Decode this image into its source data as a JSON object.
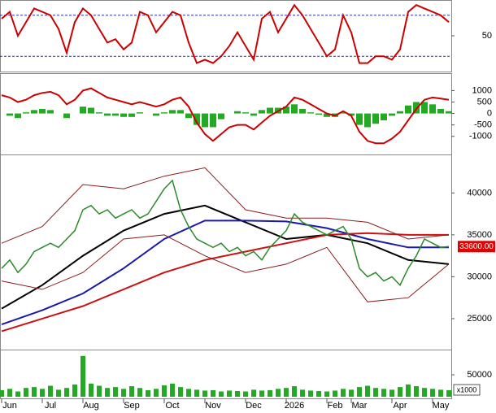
{
  "chart_data": [
    {
      "type": "oscillator",
      "ylim": [
        0,
        100
      ],
      "yticks": [
        50
      ],
      "reference_lines": [
        20,
        80
      ],
      "series": [
        {
          "color": "#cc0000",
          "values": [
            75,
            85,
            50,
            70,
            90,
            85,
            80,
            60,
            25,
            70,
            90,
            80,
            60,
            40,
            45,
            30,
            40,
            85,
            80,
            55,
            70,
            85,
            80,
            40,
            10,
            15,
            10,
            20,
            35,
            55,
            35,
            15,
            75,
            85,
            55,
            75,
            95,
            80,
            60,
            40,
            20,
            30,
            80,
            55,
            10,
            10,
            20,
            20,
            15,
            30,
            85,
            95,
            90,
            85,
            80,
            70
          ]
        }
      ]
    },
    {
      "type": "macd",
      "ylim": [
        -1650,
        1620
      ],
      "yticks": [
        1000,
        500,
        0,
        -500,
        -1000
      ],
      "series": [
        {
          "color": "#cc0000",
          "values": [
            800,
            700,
            500,
            600,
            800,
            900,
            950,
            800,
            400,
            600,
            1000,
            1100,
            900,
            700,
            600,
            500,
            400,
            500,
            400,
            300,
            400,
            600,
            700,
            300,
            -400,
            -900,
            -1200,
            -900,
            -600,
            -500,
            -500,
            -700,
            -400,
            -100,
            100,
            300,
            700,
            600,
            400,
            200,
            0,
            -100,
            100,
            -100,
            -800,
            -1200,
            -1300,
            -1300,
            -1100,
            -800,
            -300,
            200,
            600,
            700,
            650,
            600
          ]
        }
      ],
      "histogram": {
        "color": "#22aa22",
        "values": [
          0,
          -100,
          -200,
          50,
          150,
          200,
          150,
          0,
          -200,
          0,
          300,
          250,
          50,
          -100,
          -100,
          -150,
          -150,
          50,
          0,
          -100,
          50,
          150,
          150,
          -200,
          -500,
          -600,
          -600,
          -250,
          0,
          100,
          50,
          -100,
          150,
          250,
          250,
          300,
          400,
          200,
          50,
          -50,
          -150,
          -150,
          50,
          -100,
          -500,
          -600,
          -450,
          -300,
          -100,
          100,
          350,
          500,
          500,
          400,
          200,
          100
        ]
      }
    },
    {
      "type": "price",
      "ylim": [
        21500,
        44400
      ],
      "yticks": [
        40000,
        35000,
        30000,
        25000
      ],
      "series": [
        {
          "color": "#2a8a2a",
          "values": [
            31000,
            32000,
            30500,
            31500,
            33000,
            33500,
            34000,
            33500,
            34500,
            35500,
            38000,
            38500,
            37500,
            38000,
            37000,
            37500,
            38000,
            37000,
            37500,
            39000,
            40500,
            41500,
            38000,
            36000,
            34500,
            34000,
            33500,
            34000,
            33000,
            33500,
            32500,
            33000,
            32000,
            33500,
            34500,
            35500,
            37500,
            36500,
            36000,
            35500,
            35000,
            35500,
            36000,
            34500,
            31000,
            30000,
            30500,
            29500,
            30000,
            29000,
            31000,
            32500,
            34500,
            34000,
            33500,
            33600
          ]
        }
      ],
      "last_label": {
        "value": 33600,
        "label": "33600.00"
      },
      "overlays": [
        {
          "color": "#000000",
          "x": [
            0,
            5,
            10,
            15,
            20,
            25,
            30,
            35,
            40,
            45,
            50,
            55
          ],
          "values": [
            26200,
            29000,
            32500,
            35500,
            37500,
            38500,
            36500,
            34500,
            35000,
            34000,
            32000,
            31500
          ]
        },
        {
          "color": "#1a1aaa",
          "x": [
            0,
            5,
            10,
            15,
            20,
            25,
            30,
            35,
            40,
            45,
            50,
            55
          ],
          "values": [
            24300,
            26000,
            28000,
            31000,
            34500,
            36700,
            36700,
            36600,
            35800,
            34500,
            33500,
            33500
          ]
        },
        {
          "color": "#cc1111",
          "x": [
            0,
            5,
            10,
            15,
            20,
            25,
            30,
            35,
            40,
            45,
            50,
            55
          ],
          "values": [
            23500,
            25000,
            26500,
            28500,
            30500,
            32000,
            33000,
            34000,
            35000,
            35200,
            35000,
            35000
          ]
        },
        {
          "color": "#8b1a1a",
          "x": [
            0,
            5,
            10,
            15,
            20,
            25,
            30,
            35,
            40,
            45,
            50,
            55
          ],
          "values": [
            34000,
            36000,
            41000,
            40500,
            42000,
            43000,
            38000,
            37000,
            37000,
            36500,
            34500,
            35000
          ]
        },
        {
          "color": "#8b1a1a",
          "x": [
            0,
            5,
            10,
            15,
            20,
            25,
            30,
            35,
            40,
            45,
            50,
            55
          ],
          "values": [
            29500,
            28500,
            30500,
            34500,
            35000,
            32500,
            30500,
            31500,
            33500,
            27000,
            27500,
            31500
          ]
        }
      ]
    },
    {
      "type": "bar",
      "ylim": [
        0,
        100000
      ],
      "yticks": [
        50000
      ],
      "unit_label": "x1000",
      "color": "#22aa22",
      "categories": [
        null,
        "Jun",
        null,
        null,
        null,
        null,
        "Jul",
        null,
        null,
        null,
        null,
        "Aug",
        null,
        null,
        null,
        null,
        "Sep",
        null,
        null,
        null,
        null,
        "Oct",
        null,
        null,
        null,
        null,
        "Nov",
        null,
        null,
        null,
        null,
        "Dec",
        null,
        null,
        null,
        null,
        "2026",
        null,
        null,
        null,
        null,
        "Feb",
        null,
        null,
        "Mar",
        null,
        null,
        null,
        null,
        "Apr",
        null,
        null,
        null,
        null,
        "May",
        null
      ],
      "values": [
        15000,
        18000,
        12000,
        20000,
        22000,
        18000,
        25000,
        16000,
        20000,
        28000,
        93000,
        30000,
        25000,
        20000,
        22000,
        18000,
        24000,
        20000,
        15000,
        18000,
        26000,
        30000,
        22000,
        18000,
        16000,
        14000,
        15000,
        12000,
        14000,
        13000,
        12000,
        16000,
        14000,
        15000,
        18000,
        20000,
        24000,
        16000,
        14000,
        13000,
        12000,
        14000,
        18000,
        16000,
        22000,
        25000,
        20000,
        18000,
        16000,
        22000,
        28000,
        24000,
        20000,
        18000,
        16000,
        15000
      ]
    }
  ]
}
